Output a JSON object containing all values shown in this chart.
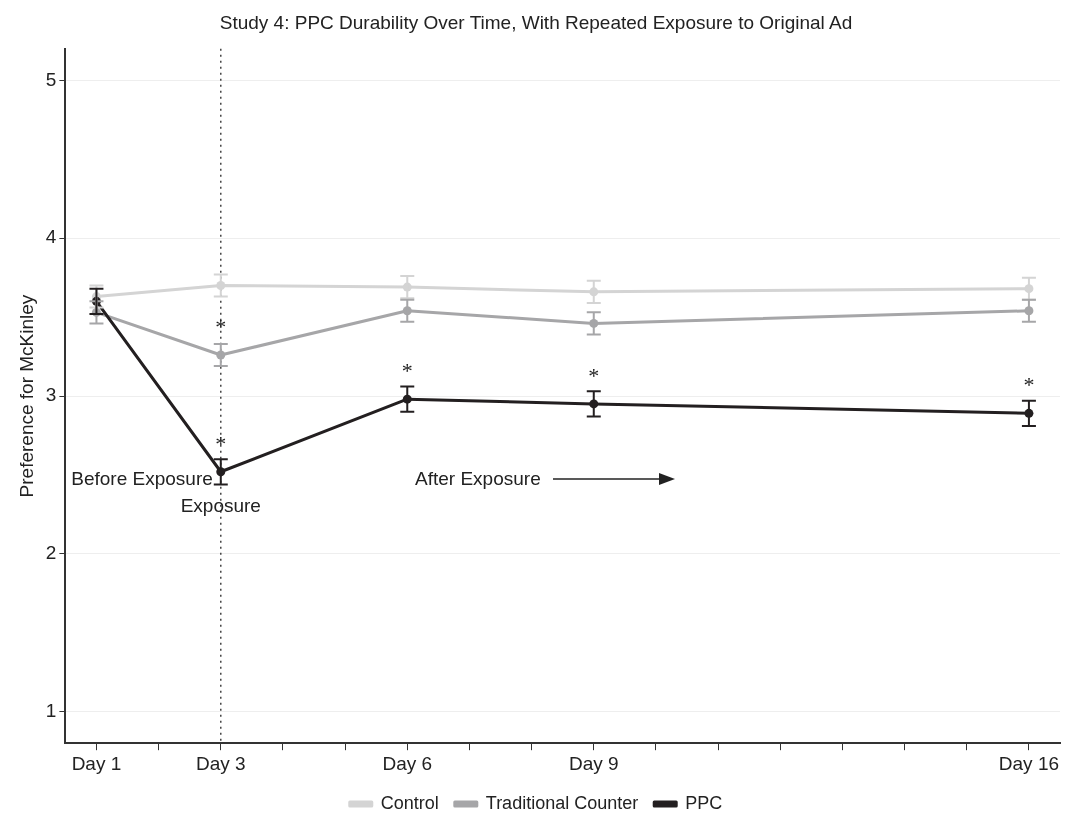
{
  "chart_data": {
    "type": "line",
    "title": "Study 4: PPC Durability Over Time, With Repeated Exposure to Original Ad",
    "ylabel": "Preference for McKinley",
    "categories": [
      "Day 1",
      null,
      "Day 3",
      null,
      null,
      "Day 6",
      null,
      null,
      "Day 9",
      null,
      null,
      null,
      null,
      null,
      null,
      "Day 16"
    ],
    "ylim": [
      0.8,
      5.2
    ],
    "yticks": [
      1,
      2,
      3,
      4,
      5
    ],
    "series": [
      {
        "name": "Control",
        "color": "#d4d4d4",
        "values": [
          3.63,
          null,
          3.7,
          null,
          null,
          3.69,
          null,
          null,
          3.66,
          null,
          null,
          null,
          null,
          null,
          null,
          3.68
        ],
        "errors": [
          0.07,
          null,
          0.07,
          null,
          null,
          0.07,
          null,
          null,
          0.07,
          null,
          null,
          null,
          null,
          null,
          null,
          0.07
        ]
      },
      {
        "name": "Traditional Counter",
        "color": "#a6a6a8",
        "values": [
          3.53,
          null,
          3.26,
          null,
          null,
          3.54,
          null,
          null,
          3.46,
          null,
          null,
          null,
          null,
          null,
          null,
          3.54
        ],
        "errors": [
          0.07,
          null,
          0.07,
          null,
          null,
          0.07,
          null,
          null,
          0.07,
          null,
          null,
          null,
          null,
          null,
          null,
          0.07
        ]
      },
      {
        "name": "PPC",
        "color": "#231f20",
        "values": [
          3.6,
          null,
          2.52,
          null,
          null,
          2.98,
          null,
          null,
          2.95,
          null,
          null,
          null,
          null,
          null,
          null,
          2.89
        ],
        "errors": [
          0.08,
          null,
          0.08,
          null,
          null,
          0.08,
          null,
          null,
          0.08,
          null,
          null,
          null,
          null,
          null,
          null,
          0.08
        ]
      }
    ],
    "ref_lines": [
      {
        "axis": "x",
        "value": "Day 3",
        "label": "Exposure",
        "line_style": "dotted",
        "color": "#444444"
      }
    ],
    "annotations": [
      "Before Exposure",
      "After Exposure",
      {
        "text": "*",
        "x": "Day 3",
        "y": 3.26
      },
      {
        "text": "*",
        "x": "Day 3",
        "y": 2.52
      },
      {
        "text": "*",
        "x": "Day 6",
        "y": 2.98
      },
      {
        "text": "*",
        "x": "Day 9",
        "y": 2.95
      },
      {
        "text": "*",
        "x": "Day 16",
        "y": 2.89
      }
    ],
    "grid": "y",
    "legend": "bottom",
    "marker": "circle",
    "line_style": "solid"
  }
}
